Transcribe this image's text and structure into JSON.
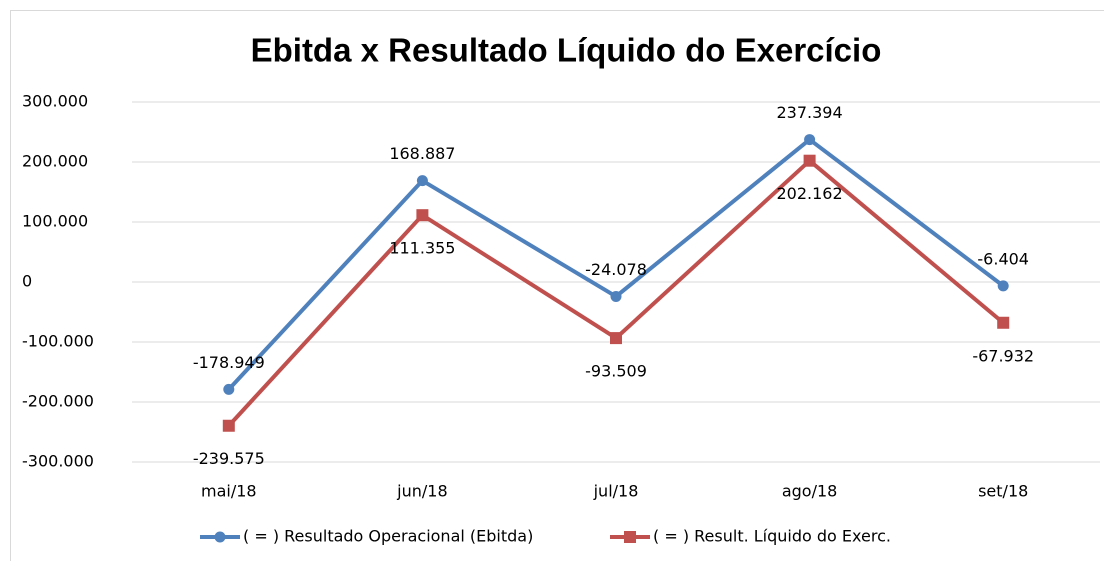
{
  "chart_data": {
    "type": "line",
    "title": "Ebitda x Resultado Líquido do Exercício",
    "categories": [
      "mai/18",
      "jun/18",
      "jul/18",
      "ago/18",
      "set/18"
    ],
    "series": [
      {
        "name": "( = ) Resultado Operacional (Ebitda)",
        "color": "#4f81bd",
        "marker": "circle",
        "values": [
          -178949,
          168887,
          -24078,
          237394,
          -6404
        ],
        "value_labels": [
          "-178.949",
          "168.887",
          "-24.078",
          "237.394",
          "-6.404"
        ]
      },
      {
        "name": "( = ) Result. Líquido do Exerc.",
        "color": "#c0504d",
        "marker": "square",
        "values": [
          -239575,
          111355,
          -93509,
          202162,
          -67932
        ],
        "value_labels": [
          "-239.575",
          "111.355",
          "-93.509",
          "202.162",
          "-67.932"
        ]
      }
    ],
    "ylim": [
      -300000,
      300000
    ],
    "yticks": [
      {
        "value": -300000,
        "label": "-300.000"
      },
      {
        "value": -200000,
        "label": "-200.000"
      },
      {
        "value": -100000,
        "label": "-100.000"
      },
      0,
      {
        "value": 100000,
        "label": "100.000"
      },
      {
        "value": 200000,
        "label": "200.000"
      },
      {
        "value": 300000,
        "label": "300.000"
      }
    ],
    "grid": true,
    "legend": "bottom"
  }
}
